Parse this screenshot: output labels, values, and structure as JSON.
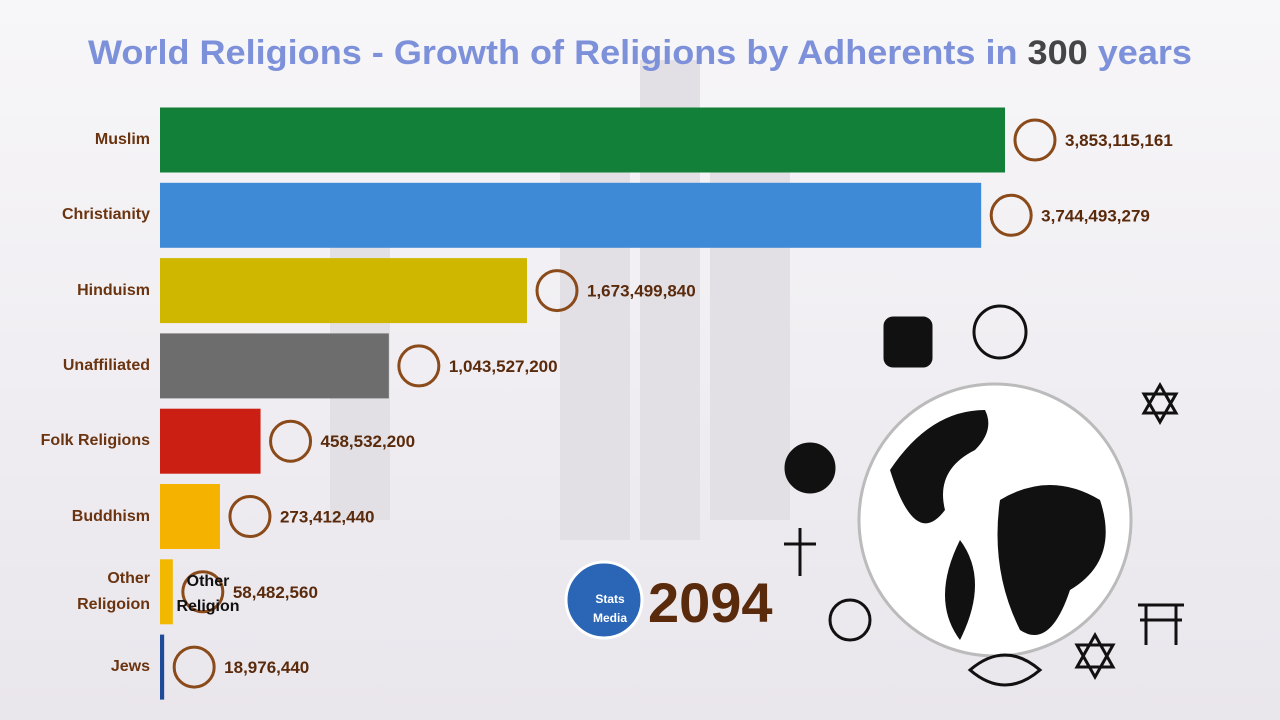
{
  "chart_data": {
    "type": "bar",
    "orientation": "horizontal",
    "title": [
      "World Religions - Growth of Religions by Adherents in ",
      "300",
      " years"
    ],
    "categories": [
      "Muslim",
      "Christianity",
      "Hinduism",
      "Unaffiliated",
      "Folk Religions",
      "Buddhism",
      "Other Religoion",
      "Jews"
    ],
    "values": [
      3853115161,
      3744493279,
      1673499840,
      1043527200,
      458532200,
      273412440,
      58482560,
      18976440
    ],
    "value_labels": [
      "3,853,115,161",
      "3,744,493,279",
      "1,673,499,840",
      "1,043,527,200",
      "458,532,200",
      "273,412,440",
      "58,482,560",
      "18,976,440"
    ],
    "colors": [
      "#138039",
      "#3f8ad6",
      "#cfb700",
      "#6d6d6d",
      "#cc1f13",
      "#f5b300",
      "#f2b800",
      "#1d4b9a"
    ],
    "icon_label": [
      "Other",
      "Religion"
    ],
    "year": "2094",
    "logo": [
      "Stats",
      "Media"
    ]
  }
}
